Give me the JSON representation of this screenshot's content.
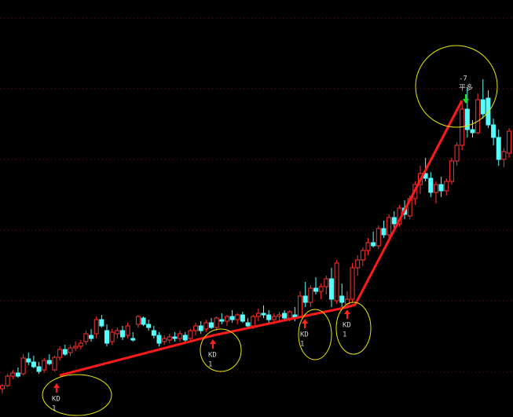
{
  "chart_data": {
    "type": "candlestick",
    "ylim": [
      0,
      531
    ],
    "up_color": "#ff3232",
    "down_color": "#54ffff",
    "ohlc": [
      [
        36,
        42,
        30,
        40
      ],
      [
        40,
        55,
        38,
        52
      ],
      [
        52,
        60,
        48,
        56
      ],
      [
        56,
        63,
        50,
        52
      ],
      [
        55,
        80,
        53,
        75
      ],
      [
        74,
        82,
        66,
        70
      ],
      [
        70,
        78,
        62,
        64
      ],
      [
        64,
        70,
        55,
        58
      ],
      [
        60,
        75,
        56,
        72
      ],
      [
        72,
        80,
        66,
        68
      ],
      [
        60,
        78,
        58,
        76
      ],
      [
        76,
        90,
        72,
        86
      ],
      [
        86,
        92,
        78,
        80
      ],
      [
        82,
        92,
        78,
        88
      ],
      [
        88,
        96,
        84,
        90
      ],
      [
        90,
        98,
        86,
        94
      ],
      [
        96,
        110,
        92,
        106
      ],
      [
        104,
        112,
        96,
        100
      ],
      [
        106,
        128,
        100,
        124
      ],
      [
        124,
        130,
        114,
        116
      ],
      [
        110,
        118,
        90,
        94
      ],
      [
        96,
        112,
        92,
        108
      ],
      [
        106,
        114,
        100,
        110
      ],
      [
        110,
        116,
        98,
        102
      ],
      [
        104,
        120,
        100,
        116
      ],
      [
        100,
        108,
        96,
        98
      ],
      [
        118,
        130,
        114,
        128
      ],
      [
        126,
        128,
        116,
        118
      ],
      [
        118,
        124,
        110,
        114
      ],
      [
        110,
        116,
        100,
        104
      ],
      [
        104,
        108,
        90,
        94
      ],
      [
        96,
        104,
        92,
        100
      ],
      [
        98,
        106,
        94,
        102
      ],
      [
        102,
        108,
        96,
        100
      ],
      [
        100,
        110,
        96,
        106
      ],
      [
        104,
        108,
        96,
        98
      ],
      [
        100,
        112,
        98,
        110
      ],
      [
        110,
        120,
        104,
        116
      ],
      [
        116,
        122,
        106,
        110
      ],
      [
        112,
        124,
        108,
        120
      ],
      [
        120,
        126,
        112,
        114
      ],
      [
        114,
        128,
        110,
        126
      ],
      [
        124,
        132,
        118,
        122
      ],
      [
        122,
        130,
        116,
        128
      ],
      [
        128,
        136,
        120,
        124
      ],
      [
        124,
        132,
        118,
        130
      ],
      [
        130,
        134,
        120,
        122
      ],
      [
        120,
        126,
        112,
        116
      ],
      [
        116,
        130,
        112,
        128
      ],
      [
        128,
        138,
        122,
        132
      ],
      [
        132,
        142,
        126,
        130
      ],
      [
        130,
        136,
        120,
        124
      ],
      [
        124,
        132,
        118,
        128
      ],
      [
        128,
        134,
        122,
        130
      ],
      [
        132,
        136,
        124,
        126
      ],
      [
        126,
        136,
        122,
        134
      ],
      [
        130,
        140,
        122,
        126
      ],
      [
        128,
        160,
        126,
        154
      ],
      [
        154,
        172,
        140,
        146
      ],
      [
        146,
        168,
        140,
        164
      ],
      [
        164,
        178,
        156,
        160
      ],
      [
        160,
        170,
        150,
        166
      ],
      [
        166,
        180,
        156,
        176
      ],
      [
        176,
        190,
        140,
        150
      ],
      [
        148,
        200,
        144,
        196
      ],
      [
        154,
        170,
        140,
        146
      ],
      [
        144,
        160,
        138,
        150
      ],
      [
        150,
        196,
        146,
        190
      ],
      [
        190,
        206,
        180,
        200
      ],
      [
        200,
        216,
        192,
        212
      ],
      [
        212,
        228,
        206,
        222
      ],
      [
        222,
        236,
        216,
        218
      ],
      [
        218,
        244,
        214,
        240
      ],
      [
        240,
        250,
        228,
        232
      ],
      [
        232,
        258,
        228,
        254
      ],
      [
        254,
        262,
        240,
        246
      ],
      [
        246,
        270,
        242,
        266
      ],
      [
        266,
        276,
        252,
        258
      ],
      [
        256,
        282,
        252,
        278
      ],
      [
        278,
        300,
        270,
        296
      ],
      [
        296,
        320,
        284,
        310
      ],
      [
        310,
        330,
        300,
        304
      ],
      [
        304,
        312,
        280,
        286
      ],
      [
        286,
        300,
        272,
        296
      ],
      [
        296,
        306,
        280,
        288
      ],
      [
        288,
        304,
        282,
        300
      ],
      [
        300,
        330,
        296,
        326
      ],
      [
        326,
        350,
        320,
        346
      ],
      [
        346,
        400,
        340,
        392
      ],
      [
        392,
        420,
        356,
        366
      ],
      [
        366,
        378,
        356,
        362
      ],
      [
        362,
        412,
        360,
        404
      ],
      [
        404,
        430,
        380,
        386
      ],
      [
        406,
        416,
        368,
        372
      ],
      [
        372,
        380,
        346,
        356
      ],
      [
        356,
        366,
        320,
        328
      ],
      [
        328,
        342,
        318,
        338
      ],
      [
        336,
        368,
        330,
        364
      ]
    ],
    "signals": [
      {
        "label": "KD",
        "count": 1
      },
      {
        "label": "KD",
        "count": 1
      },
      {
        "label": "KD",
        "count": 1
      },
      {
        "label": "KD",
        "count": 1
      }
    ],
    "exit": {
      "value": -7,
      "label": "平多"
    }
  }
}
